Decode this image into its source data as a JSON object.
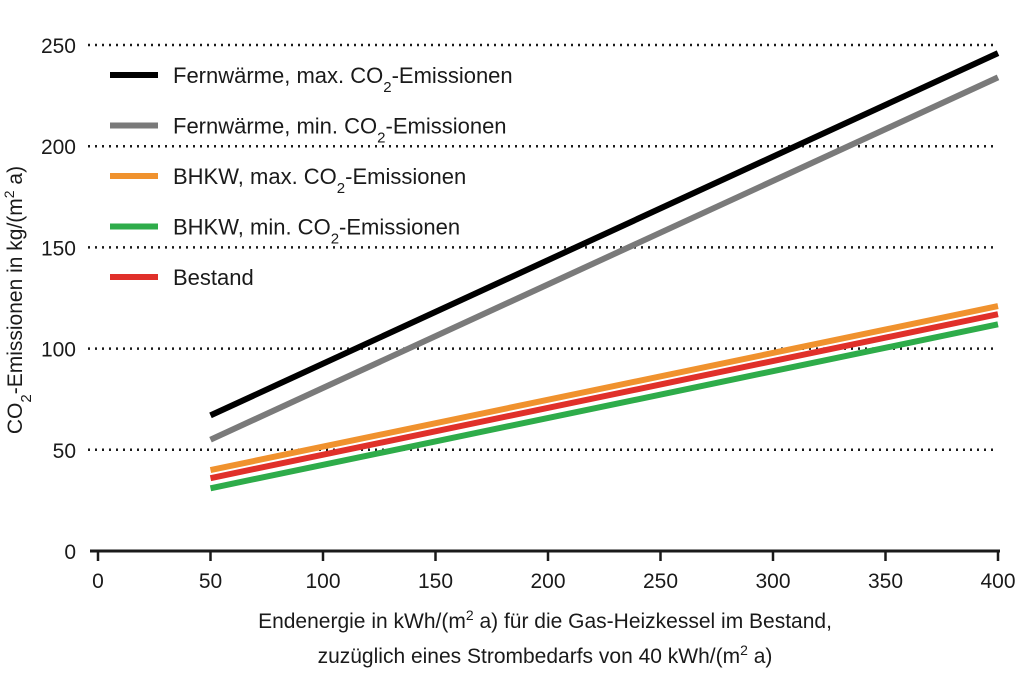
{
  "chart_data": {
    "type": "line",
    "xlabel_line1": "Endenergie in kWh/(m² a) für die Gas-Heizkessel im Bestand,",
    "xlabel_line2": "zuzüglich eines Strombedarfs von 40 kWh/(m² a)",
    "ylabel": "CO₂-Emissionen in kg/(m² a)",
    "xlim": [
      0,
      400
    ],
    "ylim": [
      0,
      250
    ],
    "xticks": [
      0,
      50,
      100,
      150,
      200,
      250,
      300,
      350,
      400
    ],
    "yticks": [
      0,
      50,
      100,
      150,
      200,
      250
    ],
    "grid": "horizontal dotted",
    "legend_position": "top-left",
    "series": [
      {
        "name": "Fernwärme, max. CO₂-Emissionen",
        "color": "#000000",
        "x": [
          50,
          400
        ],
        "y": [
          67,
          246
        ]
      },
      {
        "name": "Fernwärme, min. CO₂-Emissionen",
        "color": "#7a7a7a",
        "x": [
          50,
          400
        ],
        "y": [
          55,
          234
        ]
      },
      {
        "name": "BHKW, max. CO₂-Emissionen",
        "color": "#f0922e",
        "x": [
          50,
          400
        ],
        "y": [
          40,
          121
        ]
      },
      {
        "name": "BHKW, min. CO₂-Emissionen",
        "color": "#2eac4a",
        "x": [
          50,
          400
        ],
        "y": [
          31,
          112
        ]
      },
      {
        "name": "Bestand",
        "color": "#e0302a",
        "x": [
          50,
          400
        ],
        "y": [
          36,
          117
        ]
      }
    ]
  }
}
